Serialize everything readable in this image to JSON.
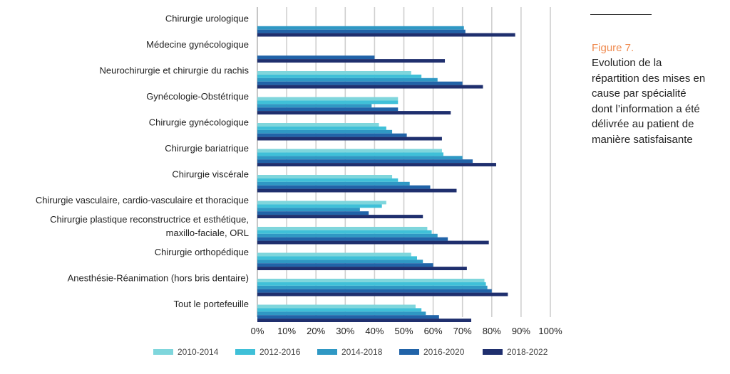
{
  "figure": {
    "number": "Figure 7.",
    "caption": "Evolution de la répartition des mises en cause par spécialité dont l’information a été délivrée au patient de manière satisfaisante"
  },
  "chart_data": {
    "type": "bar",
    "orientation": "horizontal",
    "categories": [
      "Chirurgie urologique",
      "Médecine gynécologique",
      "Neurochirurgie et chirurgie du rachis",
      "Gynécologie-Obstétrique",
      "Chirurgie gynécologique",
      "Chirurgie bariatrique",
      "Chirurgie viscérale",
      "Chirurgie vasculaire, cardio-vasculaire et thoracique",
      "Chirurgie plastique reconstructrice et esthétique,\nmaxillo-faciale, ORL",
      "Chirurgie orthopédique",
      "Anesthésie-Réanimation (hors bris dentaire)",
      "Tout le portefeuille"
    ],
    "series": [
      {
        "name": "2010-2014",
        "color": "#7fd6dc",
        "values": [
          null,
          null,
          52.5,
          48,
          41.5,
          63,
          46,
          44,
          58,
          52.5,
          77.5,
          54
        ]
      },
      {
        "name": "2012-2016",
        "color": "#3fc0d8",
        "values": [
          null,
          null,
          56,
          48,
          44,
          63.5,
          48,
          42.5,
          59.5,
          54.5,
          78,
          56
        ]
      },
      {
        "name": "2014-2018",
        "color": "#2f98c4",
        "values": [
          70.5,
          null,
          61.5,
          39,
          46,
          70,
          52,
          35,
          61.5,
          56.5,
          78.5,
          57.5
        ]
      },
      {
        "name": "2016-2020",
        "color": "#2163a8",
        "values": [
          71,
          40,
          70,
          48,
          51,
          73.5,
          59,
          38,
          65,
          60,
          80,
          62
        ]
      },
      {
        "name": "2018-2022",
        "color": "#1f2f6e",
        "values": [
          88,
          64,
          77,
          66,
          63,
          81.5,
          68,
          56.5,
          79,
          71.5,
          85.5,
          73
        ]
      }
    ],
    "xticks": [
      "0%",
      "10%",
      "20%",
      "30%",
      "40%",
      "50%",
      "60%",
      "70%",
      "80%",
      "90%",
      "100%"
    ],
    "xlim": [
      0,
      100
    ],
    "grid": "vertical",
    "legend": "bottom",
    "title": "",
    "xlabel": "",
    "ylabel": ""
  }
}
